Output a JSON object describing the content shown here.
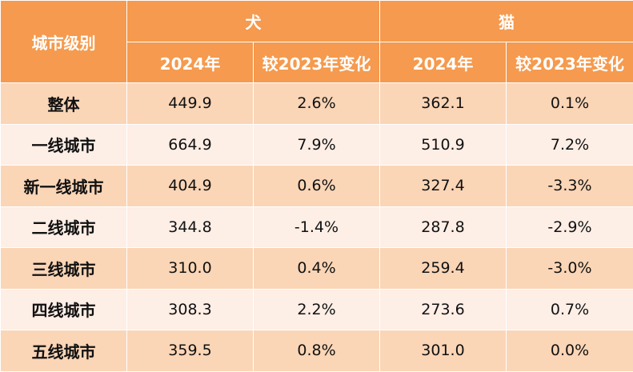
{
  "header": {
    "corner_label": "城市级别",
    "groups": [
      "犬",
      "猫"
    ],
    "subheaders": [
      "2024年",
      "较2023年变化",
      "2024年",
      "较2023年变化"
    ]
  },
  "colors": {
    "header_bg": "#f59a4e",
    "row_odd_bg": "#fad5b6",
    "row_even_bg": "#fdeee6"
  },
  "rows": [
    {
      "label": "整体",
      "values": [
        "449.9",
        "2.6%",
        "362.1",
        "0.1%"
      ]
    },
    {
      "label": "一线城市",
      "values": [
        "664.9",
        "7.9%",
        "510.9",
        "7.2%"
      ]
    },
    {
      "label": "新一线城市",
      "values": [
        "404.9",
        "0.6%",
        "327.4",
        "-3.3%"
      ]
    },
    {
      "label": "二线城市",
      "values": [
        "344.8",
        "-1.4%",
        "287.8",
        "-2.9%"
      ]
    },
    {
      "label": "三线城市",
      "values": [
        "310.0",
        "0.4%",
        "259.4",
        "-3.0%"
      ]
    },
    {
      "label": "四线城市",
      "values": [
        "308.3",
        "2.2%",
        "273.6",
        "0.7%"
      ]
    },
    {
      "label": "五线城市",
      "values": [
        "359.5",
        "0.8%",
        "301.0",
        "0.0%"
      ]
    }
  ]
}
